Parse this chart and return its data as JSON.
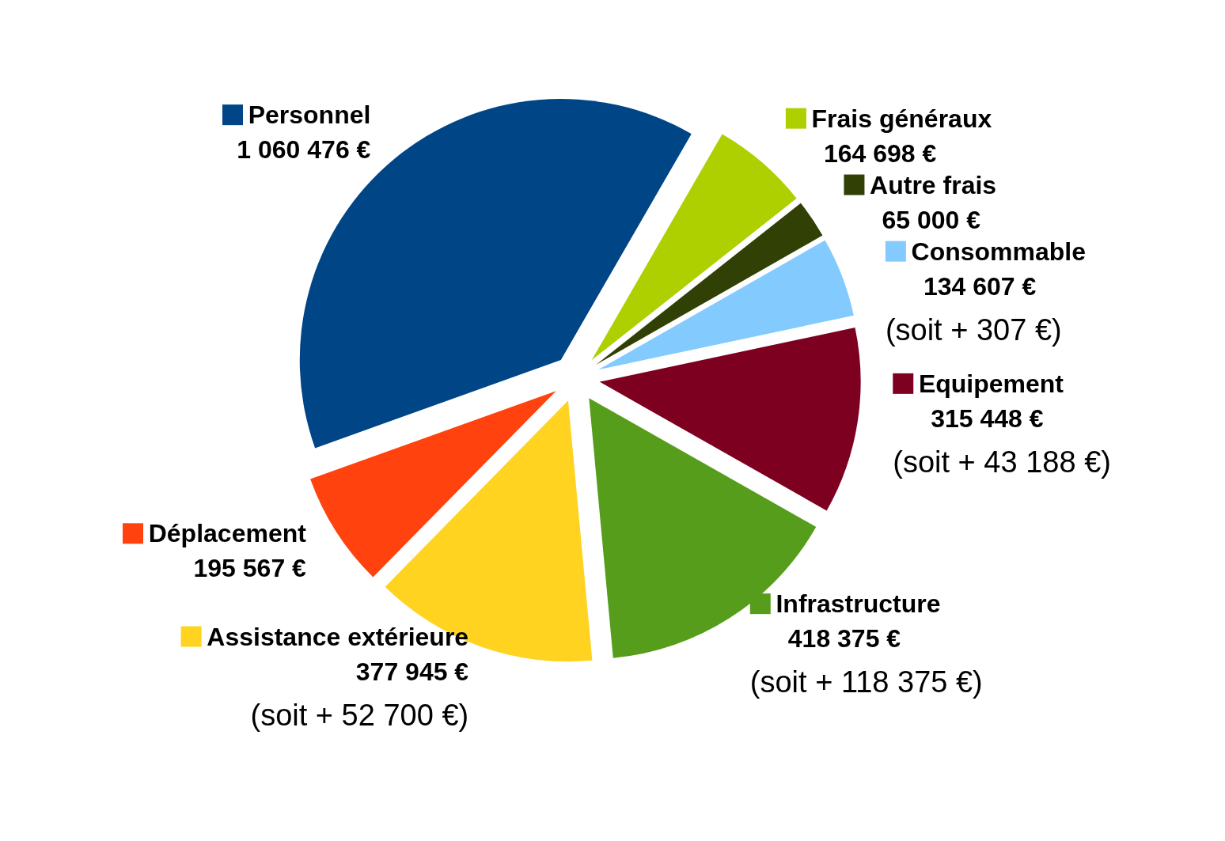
{
  "chart_data": {
    "type": "pie",
    "categories": [
      "Frais généraux",
      "Autre frais",
      "Consommable",
      "Equipement",
      "Infrastructure",
      "Assistance extérieure",
      "Déplacement",
      "Personnel"
    ],
    "values": [
      164698,
      65000,
      134607,
      315448,
      418375,
      377945,
      195567,
      1060476
    ],
    "value_labels": [
      "164 698 €",
      "65 000 €",
      "134 607 €",
      "315 448 €",
      "418 375 €",
      "377 945 €",
      "195 567 €",
      "1 060 476 €"
    ],
    "colors": [
      "#aecf00",
      "#314004",
      "#83caff",
      "#7e0021",
      "#579d1c",
      "#ffd320",
      "#ff420e",
      "#004586"
    ],
    "annotations": [
      {
        "text": "(soit + 307 €)",
        "x": "Consommable"
      },
      {
        "text": "(soit + 43 188 €)",
        "x": "Equipement"
      },
      {
        "text": "(soit + 118 375 €)",
        "x": "Infrastructure"
      },
      {
        "text": "(soit + 52 700 €)",
        "x": "Assistance extérieure"
      }
    ],
    "legend": "right"
  }
}
